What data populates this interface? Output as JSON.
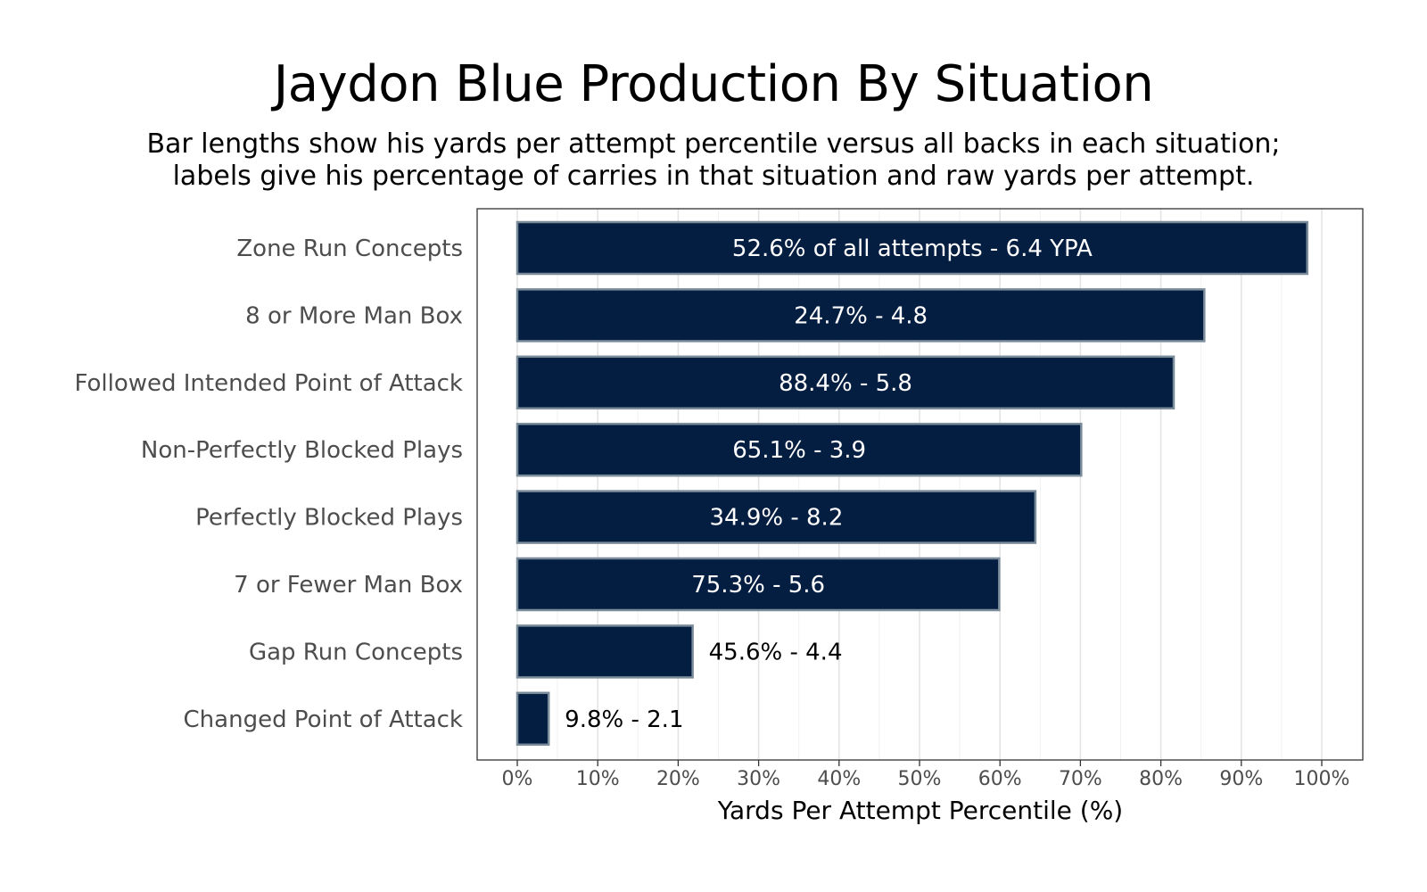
{
  "chart_data": {
    "type": "bar",
    "orientation": "horizontal",
    "title": "Jaydon Blue Production By Situation",
    "subtitle": [
      "Bar lengths show his yards per attempt percentile versus all backs in each situation;",
      "labels give his percentage of carries in that situation and raw yards per attempt."
    ],
    "xlabel": "Yards Per Attempt Percentile (%)",
    "ylabel": "",
    "xlim": [
      0,
      100
    ],
    "x_ticks": [
      "0%",
      "10%",
      "20%",
      "30%",
      "40%",
      "50%",
      "60%",
      "70%",
      "80%",
      "90%",
      "100%"
    ],
    "x_tick_values": [
      0,
      10,
      20,
      30,
      40,
      50,
      60,
      70,
      80,
      90,
      100
    ],
    "grid": true,
    "categories": [
      "Zone Run Concepts",
      "8 or More Man Box",
      "Followed Intended Point of Attack",
      "Non-Perfectly Blocked Plays",
      "Perfectly Blocked Plays",
      "7 or Fewer Man Box",
      "Gap Run Concepts",
      "Changed Point of Attack"
    ],
    "values": [
      98.2,
      85.4,
      81.6,
      70.1,
      64.4,
      59.9,
      21.8,
      3.9
    ],
    "labels": [
      "52.6% of all attempts - 6.4 YPA",
      "24.7% - 4.8",
      "88.4% - 5.8",
      "65.1% - 3.9",
      "34.9% - 8.2",
      "75.3% - 5.6",
      "45.6% - 4.4",
      "9.8% - 2.1"
    ],
    "colors": {
      "bar_fill": "#041e42",
      "bar_stroke": "#7a8b99",
      "label_inside": "#ffffff",
      "label_outside": "#000000"
    }
  }
}
